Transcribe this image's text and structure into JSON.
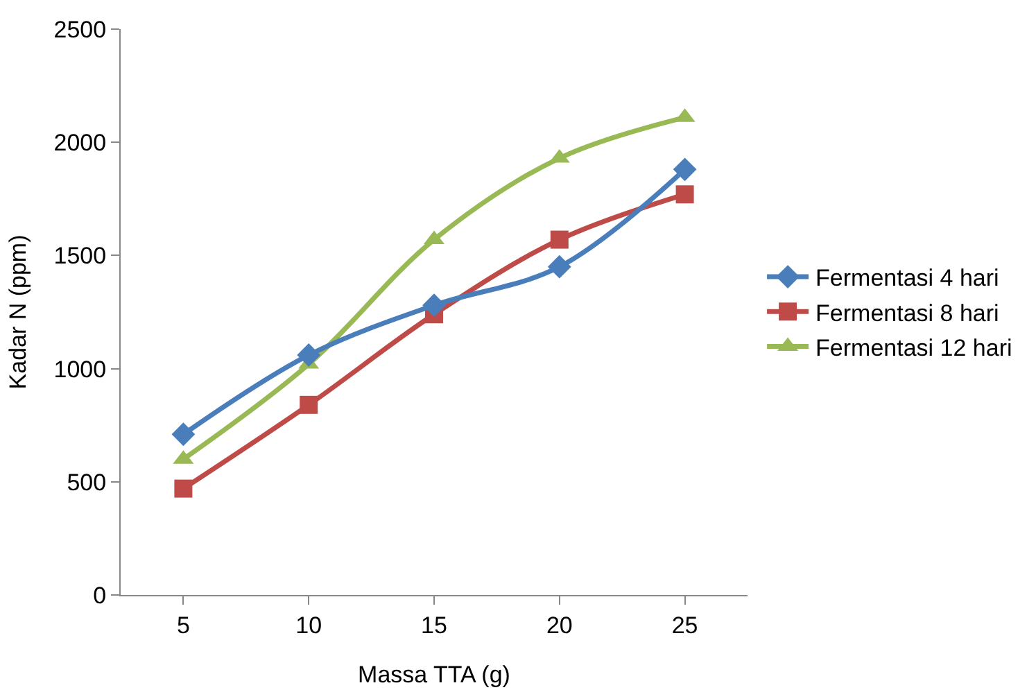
{
  "chart_data": {
    "type": "line",
    "xlabel": "Massa TTA (g)",
    "ylabel": "Kadar N (ppm)",
    "categories": [
      "5",
      "10",
      "15",
      "20",
      "25"
    ],
    "series": [
      {
        "name": "Fermentasi 4 hari",
        "color": "#4a7ebb",
        "marker": "diamond",
        "values": [
          710,
          1060,
          1280,
          1450,
          1880
        ]
      },
      {
        "name": "Fermentasi 8 hari",
        "color": "#be4b48",
        "marker": "square",
        "values": [
          470,
          840,
          1240,
          1570,
          1770
        ]
      },
      {
        "name": "Fermentasi 12 hari",
        "color": "#98b954",
        "marker": "triangle",
        "values": [
          600,
          1020,
          1570,
          1930,
          2110
        ]
      }
    ],
    "ylim": [
      0,
      2500
    ],
    "yticks": [
      0,
      500,
      1000,
      1500,
      2000,
      2500
    ],
    "legend": "right"
  }
}
